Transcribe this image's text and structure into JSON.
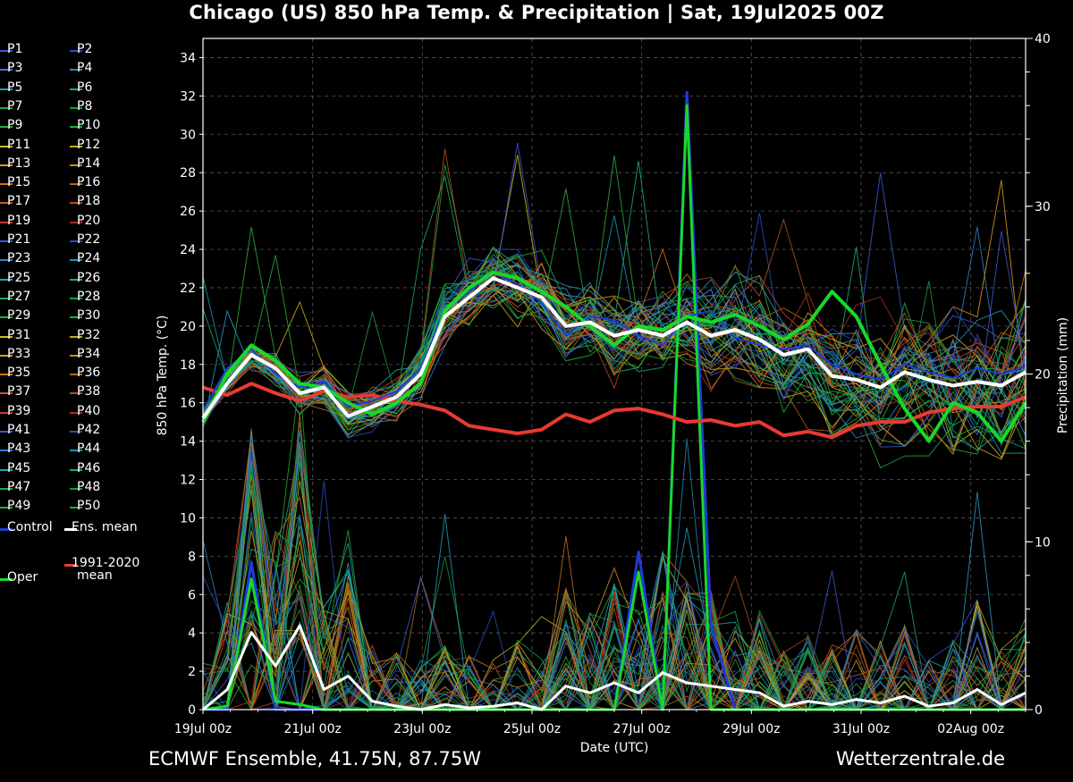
{
  "header": {
    "title": "Chicago  (US)  850 hPa Temp. & Precipitation | Sat, 19Jul2025 00Z"
  },
  "footer": {
    "left": "ECMWF Ensemble, 41.75N, 87.75W",
    "right": "Wetterzentrale.de"
  },
  "legend": {
    "members": [
      "P1",
      "P2",
      "P3",
      "P4",
      "P5",
      "P6",
      "P7",
      "P8",
      "P9",
      "P10",
      "P11",
      "P12",
      "P13",
      "P14",
      "P15",
      "P16",
      "P17",
      "P18",
      "P19",
      "P20",
      "P21",
      "P22",
      "P23",
      "P24",
      "P25",
      "P26",
      "P27",
      "P28",
      "P29",
      "P30",
      "P31",
      "P32",
      "P33",
      "P34",
      "P35",
      "P36",
      "P37",
      "P38",
      "P39",
      "P40",
      "P41",
      "P42",
      "P43",
      "P44",
      "P45",
      "P46",
      "P47",
      "P48",
      "P49",
      "P50"
    ],
    "member_colors": [
      "#3a58d6",
      "#2a4cc0",
      "#2e7fd4",
      "#1f8fb8",
      "#22a0c4",
      "#1aa88a",
      "#19a85a",
      "#159a3c",
      "#2aa83c",
      "#1cb52e",
      "#c9b81e",
      "#c8a81c",
      "#d49a20",
      "#c88a1a",
      "#c8781c",
      "#b86818",
      "#c05a20",
      "#b84a1c",
      "#c43a30",
      "#a83020",
      "#3a58d6",
      "#2a4cc0",
      "#2e7fd4",
      "#1f8fb8",
      "#22a0c4",
      "#1aa88a",
      "#19a85a",
      "#159a3c",
      "#2aa83c",
      "#1cb52e",
      "#c9b81e",
      "#c8a81c",
      "#d49a20",
      "#c88a1a",
      "#c8781c",
      "#b86818",
      "#c05a20",
      "#b84a1c",
      "#c43a30",
      "#a83020",
      "#3a58d6",
      "#2a4cc0",
      "#2e7fd4",
      "#1f8fb8",
      "#22a0c4",
      "#1aa88a",
      "#19a85a",
      "#159a3c",
      "#2aa83c",
      "#1cb52e"
    ],
    "control": "Control",
    "ens_mean": "Ens. mean",
    "clim_line1": "1991-2020",
    "clim_line2": "mean",
    "oper": "Oper",
    "control_color": "#1f3ad8",
    "ens_mean_color": "#ffffff",
    "clim_color": "#e83a32",
    "oper_color": "#19d82a"
  },
  "chart_data": {
    "type": "line",
    "ylabel": "850 hPa Temp. (°C)",
    "y2label": "Precipitation (mm)",
    "xlabel": "Date (UTC)",
    "ylim": [
      0,
      35
    ],
    "y2lim": [
      0,
      40
    ],
    "yticks": [
      0,
      2,
      4,
      6,
      8,
      10,
      12,
      14,
      16,
      18,
      20,
      22,
      24,
      26,
      28,
      30,
      32,
      34
    ],
    "y2ticks": [
      0,
      10,
      20,
      30,
      40
    ],
    "xlim_hours": [
      0,
      360
    ],
    "xticks": [
      "19Jul 00z",
      "21Jul 00z",
      "23Jul 00z",
      "25Jul 00z",
      "27Jul 00z",
      "29Jul 00z",
      "31Jul 00z",
      "02Aug 00z"
    ],
    "grid": true,
    "ens_mean_temp": [
      15.2,
      17.0,
      18.5,
      17.8,
      16.5,
      16.8,
      15.3,
      15.8,
      16.3,
      17.5,
      20.5,
      21.5,
      22.5,
      22.0,
      21.5,
      20.0,
      20.2,
      19.5,
      19.8,
      19.5,
      20.2,
      19.5,
      19.8,
      19.3,
      18.5,
      18.8,
      17.4,
      17.2,
      16.8,
      17.6,
      17.2,
      16.9,
      17.1,
      16.9,
      17.6
    ],
    "clim_mean_temp": [
      16.8,
      16.4,
      17.0,
      16.5,
      16.1,
      16.6,
      16.3,
      16.4,
      16.1,
      15.9,
      15.6,
      14.8,
      14.6,
      14.4,
      14.6,
      15.4,
      15.0,
      15.6,
      15.7,
      15.4,
      15.0,
      15.1,
      14.8,
      15.0,
      14.3,
      14.5,
      14.2,
      14.8,
      15.0,
      15.0,
      15.5,
      15.7,
      15.8,
      15.8,
      16.3
    ],
    "oper_temp": [
      15.0,
      17.5,
      19.0,
      18.2,
      17.0,
      16.8,
      16.0,
      15.4,
      16.0,
      17.0,
      20.8,
      22.0,
      22.8,
      22.5,
      21.8,
      21.0,
      20.0,
      19.0,
      20.0,
      19.8,
      20.5,
      20.2,
      20.6,
      20.0,
      19.3,
      20.1,
      21.8,
      20.5,
      18.0,
      15.7,
      14.0,
      16.0,
      15.5,
      14.0,
      16.0
    ],
    "control_temp": [
      15.6,
      17.8,
      18.8,
      17.5,
      16.8,
      17.1,
      15.8,
      16.1,
      16.6,
      17.8,
      20.8,
      21.8,
      22.8,
      22.2,
      21.2,
      19.5,
      20.5,
      20.3,
      19.5,
      19.0,
      20.5,
      20.8,
      19.4,
      19.0,
      18.8,
      19.0,
      18.0,
      17.5,
      17.2,
      18.0,
      17.6,
      17.3,
      17.8,
      17.5,
      17.9
    ],
    "ens_mean_precip": [
      0.0,
      1.2,
      4.6,
      2.6,
      5.0,
      1.2,
      2.0,
      0.5,
      0.2,
      0.0,
      0.3,
      0.1,
      0.2,
      0.4,
      0.0,
      1.4,
      1.0,
      1.6,
      1.0,
      2.2,
      1.6,
      1.4,
      1.2,
      1.0,
      0.2,
      0.5,
      0.3,
      0.6,
      0.4,
      0.8,
      0.2,
      0.4,
      1.2,
      0.3,
      1.0
    ],
    "oper_precip": [
      0.0,
      0.2,
      7.8,
      0.5,
      0.3,
      0.0,
      0.0,
      0.0,
      0.0,
      0.0,
      0.0,
      0.0,
      0.0,
      0.0,
      0.0,
      0.0,
      0.0,
      0.0,
      8.2,
      0.0,
      36.0,
      0.0,
      0.0,
      0.0,
      0.0,
      0.0,
      0.0,
      0.0,
      0.0,
      0.0,
      0.0,
      0.0,
      0.0,
      0.0,
      0.0
    ],
    "control_precip": [
      0.0,
      0.0,
      8.8,
      0.0,
      0.0,
      0.0,
      0.0,
      0.0,
      0.0,
      0.0,
      0.0,
      0.0,
      0.0,
      0.0,
      0.0,
      0.0,
      0.0,
      0.0,
      9.4,
      0.0,
      36.8,
      5.0,
      0.0,
      0.0,
      0.0,
      0.0,
      0.0,
      0.0,
      0.0,
      0.0,
      0.0,
      0.0,
      0.0,
      0.0,
      0.0
    ]
  }
}
